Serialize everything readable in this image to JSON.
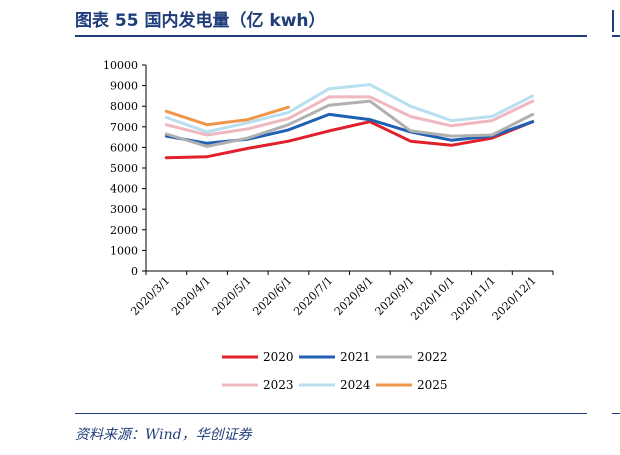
{
  "header": {
    "title": "图表 55   国内发电量（亿 kwh）"
  },
  "footer": {
    "source": "资料来源：Wind，华创证券"
  },
  "chart_data": {
    "type": "line",
    "x": [
      "2020/3/1",
      "2020/4/1",
      "2020/5/1",
      "2020/6/1",
      "2020/7/1",
      "2020/8/1",
      "2020/9/1",
      "2020/10/1",
      "2020/11/1",
      "2020/12/1"
    ],
    "ylim": [
      0,
      10000
    ],
    "yticks": [
      0,
      1000,
      2000,
      3000,
      4000,
      5000,
      6000,
      7000,
      8000,
      9000,
      10000
    ],
    "grid": false,
    "legend_position": "bottom",
    "series": [
      {
        "name": "2020",
        "color": "#e0202a",
        "values": [
          5500,
          5550,
          5950,
          6300,
          6800,
          7250,
          6300,
          6100,
          6450,
          7250
        ]
      },
      {
        "name": "2021",
        "color": "#1f5fb4",
        "values": [
          6550,
          6200,
          6400,
          6850,
          7600,
          7350,
          6750,
          6350,
          6550,
          7250
        ]
      },
      {
        "name": "2022",
        "color": "#b0b0b0",
        "values": [
          6650,
          6050,
          6450,
          7100,
          8050,
          8250,
          6800,
          6550,
          6600,
          7600
        ]
      },
      {
        "name": "2023",
        "color": "#efb8c0",
        "values": [
          7100,
          6600,
          6900,
          7400,
          8450,
          8450,
          7500,
          7050,
          7300,
          8250
        ]
      },
      {
        "name": "2024",
        "color": "#b8dff0",
        "values": [
          7450,
          6750,
          7200,
          7700,
          8850,
          9050,
          8000,
          7300,
          7500,
          8500
        ]
      },
      {
        "name": "2025",
        "color": "#f0964a",
        "values": [
          7750,
          7100,
          7350,
          7950,
          null,
          null,
          null,
          null,
          null,
          null
        ]
      }
    ]
  }
}
